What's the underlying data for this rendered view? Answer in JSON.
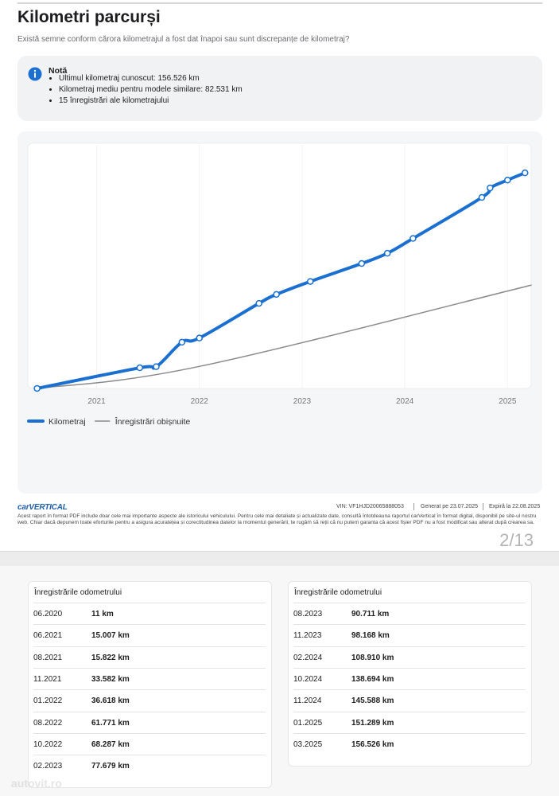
{
  "header": {
    "title": "Kilometri parcurși",
    "subtitle": "Există semne conform cărora kilometrajul a fost dat înapoi sau sunt discrepanțe de kilometraj?"
  },
  "note": {
    "title": "Notă",
    "items": [
      "Ultimul kilometraj cunoscut: 156.526 km",
      "Kilometraj mediu pentru modele similare: 82.531 km",
      "15 înregistrări ale kilometrajului"
    ]
  },
  "chart_data": {
    "type": "line",
    "xlim": [
      2020.33,
      2025.23
    ],
    "xticks": [
      2021,
      2022,
      2023,
      2024,
      2025
    ],
    "ylim": [
      0,
      178000
    ],
    "grid": true,
    "series": [
      {
        "name": "Kilometraj",
        "color": "#1a6fd0",
        "x": [
          2020.42,
          2021.42,
          2021.58,
          2021.83,
          2022.0,
          2022.58,
          2022.75,
          2023.08,
          2023.58,
          2023.83,
          2024.08,
          2024.75,
          2024.83,
          2025.0,
          2025.17
        ],
        "values": [
          11,
          15007,
          15822,
          33582,
          36618,
          61771,
          68287,
          77679,
          90711,
          98168,
          108910,
          138694,
          145588,
          151289,
          156526
        ]
      },
      {
        "name": "Înregistrări obișnuite",
        "color": "#8a8a8a",
        "x": [
          2020.42,
          2022.0,
          2025.23
        ],
        "values": [
          0,
          16000,
          75000
        ]
      }
    ]
  },
  "footer": {
    "logo": "carVERTICAL",
    "vin": "VIN: VF1HJD20065888053",
    "generated": "Generat pe 23.07.2025",
    "expires": "Expiră la 22.08.2025",
    "disclaimer": "Acest raport în format PDF include doar cele mai importante aspecte ale istoricului vehiculului. Pentru cele mai detaliate și actualizate date, consultă întotdeauna raportul carVertical în format digital, disponibil pe site-ul nostru web. Chiar dacă depunem toate eforturile pentru a asigura acuratețea și corectitudinea datelor la momentul generării, te rugăm să reții că nu putem garanta că acest fișier PDF nu a fost modificat sau alterat după crearea sa.",
    "page": "2/13"
  },
  "tables": [
    {
      "title": "Înregistrările odometrului",
      "rows": [
        [
          "06.2020",
          "11 km"
        ],
        [
          "06.2021",
          "15.007 km"
        ],
        [
          "08.2021",
          "15.822 km"
        ],
        [
          "11.2021",
          "33.582 km"
        ],
        [
          "01.2022",
          "36.618 km"
        ],
        [
          "08.2022",
          "61.771 km"
        ],
        [
          "10.2022",
          "68.287 km"
        ],
        [
          "02.2023",
          "77.679 km"
        ]
      ]
    },
    {
      "title": "Înregistrările odometrului",
      "rows": [
        [
          "08.2023",
          "90.711 km"
        ],
        [
          "11.2023",
          "98.168 km"
        ],
        [
          "02.2024",
          "108.910 km"
        ],
        [
          "10.2024",
          "138.694 km"
        ],
        [
          "11.2024",
          "145.588 km"
        ],
        [
          "01.2025",
          "151.289 km"
        ],
        [
          "03.2025",
          "156.526 km"
        ]
      ]
    }
  ],
  "watermark": "autovit.ro"
}
